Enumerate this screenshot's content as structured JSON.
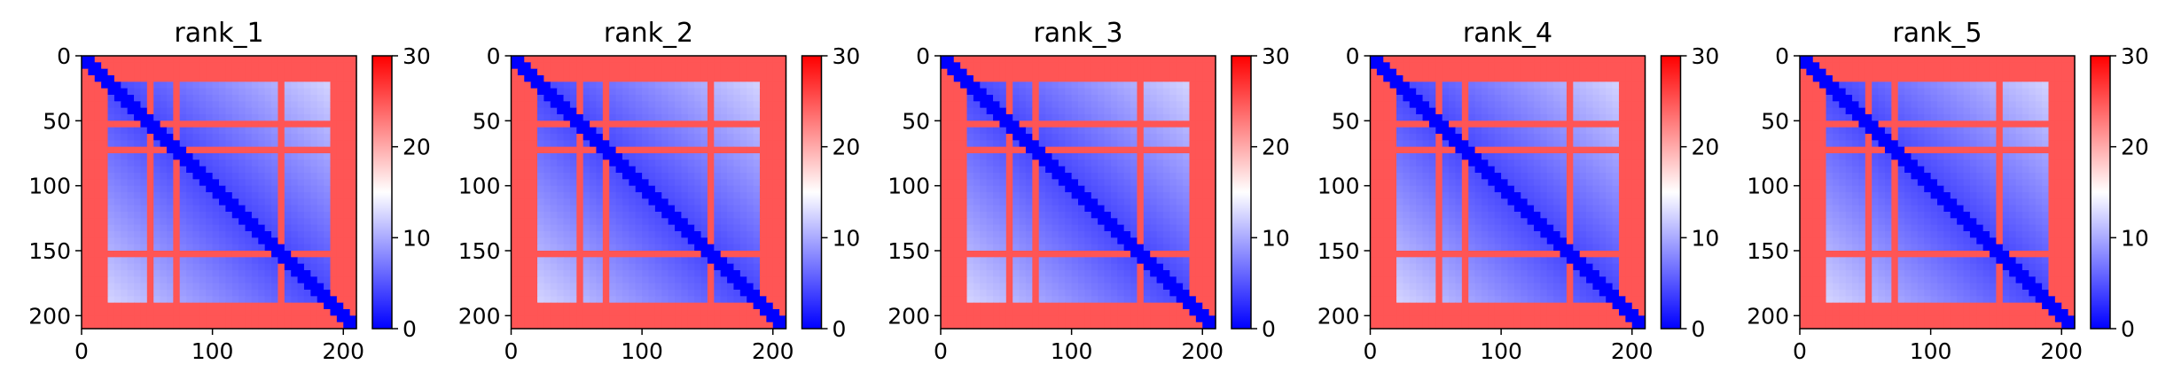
{
  "figure": {
    "panels": [
      "rank_1",
      "rank_2",
      "rank_3",
      "rank_4",
      "rank_5"
    ]
  },
  "colors": {
    "low": "#0000ff",
    "mid": "#ffffff",
    "high": "#ff0000"
  },
  "chart_data": [
    {
      "type": "heatmap",
      "title": "rank_1",
      "xlim": [
        0,
        210
      ],
      "ylim": [
        210,
        0
      ],
      "xticks": [
        "0",
        "100",
        "200"
      ],
      "yticks": [
        "0",
        "50",
        "100",
        "150",
        "200"
      ],
      "colorbar": {
        "range": [
          0,
          30
        ],
        "ticks": [
          "0",
          "10",
          "20",
          "30"
        ],
        "colormap": "bwr"
      },
      "high_bands": [
        [
          0,
          18
        ],
        [
          50,
          56
        ],
        [
          72,
          77
        ],
        [
          150,
          157
        ],
        [
          188,
          210
        ]
      ],
      "diagonal_value": 0
    },
    {
      "type": "heatmap",
      "title": "rank_2",
      "xlim": [
        0,
        210
      ],
      "ylim": [
        210,
        0
      ],
      "xticks": [
        "0",
        "100",
        "200"
      ],
      "yticks": [
        "0",
        "50",
        "100",
        "150",
        "200"
      ],
      "colorbar": {
        "range": [
          0,
          30
        ],
        "ticks": [
          "0",
          "10",
          "20",
          "30"
        ],
        "colormap": "bwr"
      },
      "high_bands": [
        [
          0,
          18
        ],
        [
          50,
          56
        ],
        [
          72,
          77
        ],
        [
          150,
          157
        ],
        [
          188,
          210
        ]
      ],
      "diagonal_value": 0
    },
    {
      "type": "heatmap",
      "title": "rank_3",
      "xlim": [
        0,
        210
      ],
      "ylim": [
        210,
        0
      ],
      "xticks": [
        "0",
        "100",
        "200"
      ],
      "yticks": [
        "0",
        "50",
        "100",
        "150",
        "200"
      ],
      "colorbar": {
        "range": [
          0,
          30
        ],
        "ticks": [
          "0",
          "10",
          "20",
          "30"
        ],
        "colormap": "bwr"
      },
      "high_bands": [
        [
          0,
          18
        ],
        [
          50,
          56
        ],
        [
          72,
          77
        ],
        [
          150,
          157
        ],
        [
          188,
          210
        ]
      ],
      "diagonal_value": 0
    },
    {
      "type": "heatmap",
      "title": "rank_4",
      "xlim": [
        0,
        210
      ],
      "ylim": [
        210,
        0
      ],
      "xticks": [
        "0",
        "100",
        "200"
      ],
      "yticks": [
        "0",
        "50",
        "100",
        "150",
        "200"
      ],
      "colorbar": {
        "range": [
          0,
          30
        ],
        "ticks": [
          "0",
          "10",
          "20",
          "30"
        ],
        "colormap": "bwr"
      },
      "high_bands": [
        [
          0,
          18
        ],
        [
          50,
          56
        ],
        [
          72,
          77
        ],
        [
          150,
          157
        ],
        [
          188,
          210
        ]
      ],
      "diagonal_value": 0
    },
    {
      "type": "heatmap",
      "title": "rank_5",
      "xlim": [
        0,
        210
      ],
      "ylim": [
        210,
        0
      ],
      "xticks": [
        "0",
        "100",
        "200"
      ],
      "yticks": [
        "0",
        "50",
        "100",
        "150",
        "200"
      ],
      "colorbar": {
        "range": [
          0,
          30
        ],
        "ticks": [
          "0",
          "10",
          "20",
          "30"
        ],
        "colormap": "bwr"
      },
      "high_bands": [
        [
          0,
          18
        ],
        [
          50,
          56
        ],
        [
          72,
          77
        ],
        [
          150,
          157
        ],
        [
          188,
          210
        ]
      ],
      "diagonal_value": 0
    }
  ]
}
